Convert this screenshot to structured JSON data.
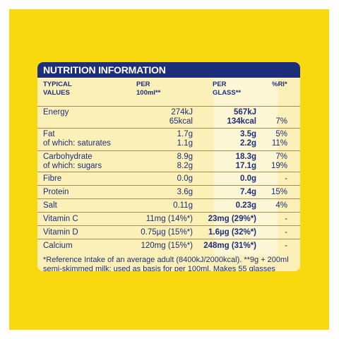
{
  "panel": {
    "title": "NUTRITION INFORMATION",
    "headers": {
      "col1": [
        "TYPICAL",
        "VALUES"
      ],
      "col2": [
        "PER",
        "100ml**"
      ],
      "col3": [
        "PER",
        "GLASS**"
      ],
      "col4": [
        "%RI*"
      ]
    },
    "rows": [
      {
        "label": [
          "Energy"
        ],
        "per100": [
          "274kJ",
          "65kcal"
        ],
        "glass": [
          "567kJ",
          "134kcal"
        ],
        "ri": [
          "",
          "7%"
        ]
      },
      {
        "label": [
          "Fat",
          "of which: saturates"
        ],
        "per100": [
          "1.7g",
          "1.1g"
        ],
        "glass": [
          "3.5g",
          "2.2g"
        ],
        "ri": [
          "5%",
          "11%"
        ]
      },
      {
        "label": [
          "Carbohydrate",
          "of which: sugars"
        ],
        "per100": [
          "8.9g",
          "8.2g"
        ],
        "glass": [
          "18.3g",
          "17.1g"
        ],
        "ri": [
          "7%",
          "19%"
        ]
      },
      {
        "label": [
          "Fibre"
        ],
        "per100": [
          "0.0g"
        ],
        "glass": [
          "0.0g"
        ],
        "ri": [
          "-"
        ]
      },
      {
        "label": [
          "Protein"
        ],
        "per100": [
          "3.6g"
        ],
        "glass": [
          "7.4g"
        ],
        "ri": [
          "15%"
        ]
      },
      {
        "label": [
          "Salt"
        ],
        "per100": [
          "0.11g"
        ],
        "glass": [
          "0.23g"
        ],
        "ri": [
          "4%"
        ]
      },
      {
        "label": [
          "Vitamin C"
        ],
        "per100": [
          "11mg (14%*)"
        ],
        "glass": [
          "23mg (29%*)"
        ],
        "ri": [
          "-"
        ]
      },
      {
        "label": [
          "Vitamin D"
        ],
        "per100": [
          "0.75µg (15%*)"
        ],
        "glass": [
          "1.6µg (32%*)"
        ],
        "ri": [
          "-"
        ]
      },
      {
        "label": [
          "Calcium"
        ],
        "per100": [
          "120mg (15%*)"
        ],
        "glass": [
          "248mg (31%*)"
        ],
        "ri": [
          "-"
        ]
      }
    ],
    "footnote": "*Reference Intake of an average adult (8400kJ/2000kcal). **9g + 200ml semi-skimmed milk; used as basis for per 100ml. Makes 55 glasses"
  },
  "colors": {
    "pack": "#f8d90f",
    "panel": "#fbf0b8",
    "header": "#1d2e7a",
    "rule": "#b08a4e"
  }
}
